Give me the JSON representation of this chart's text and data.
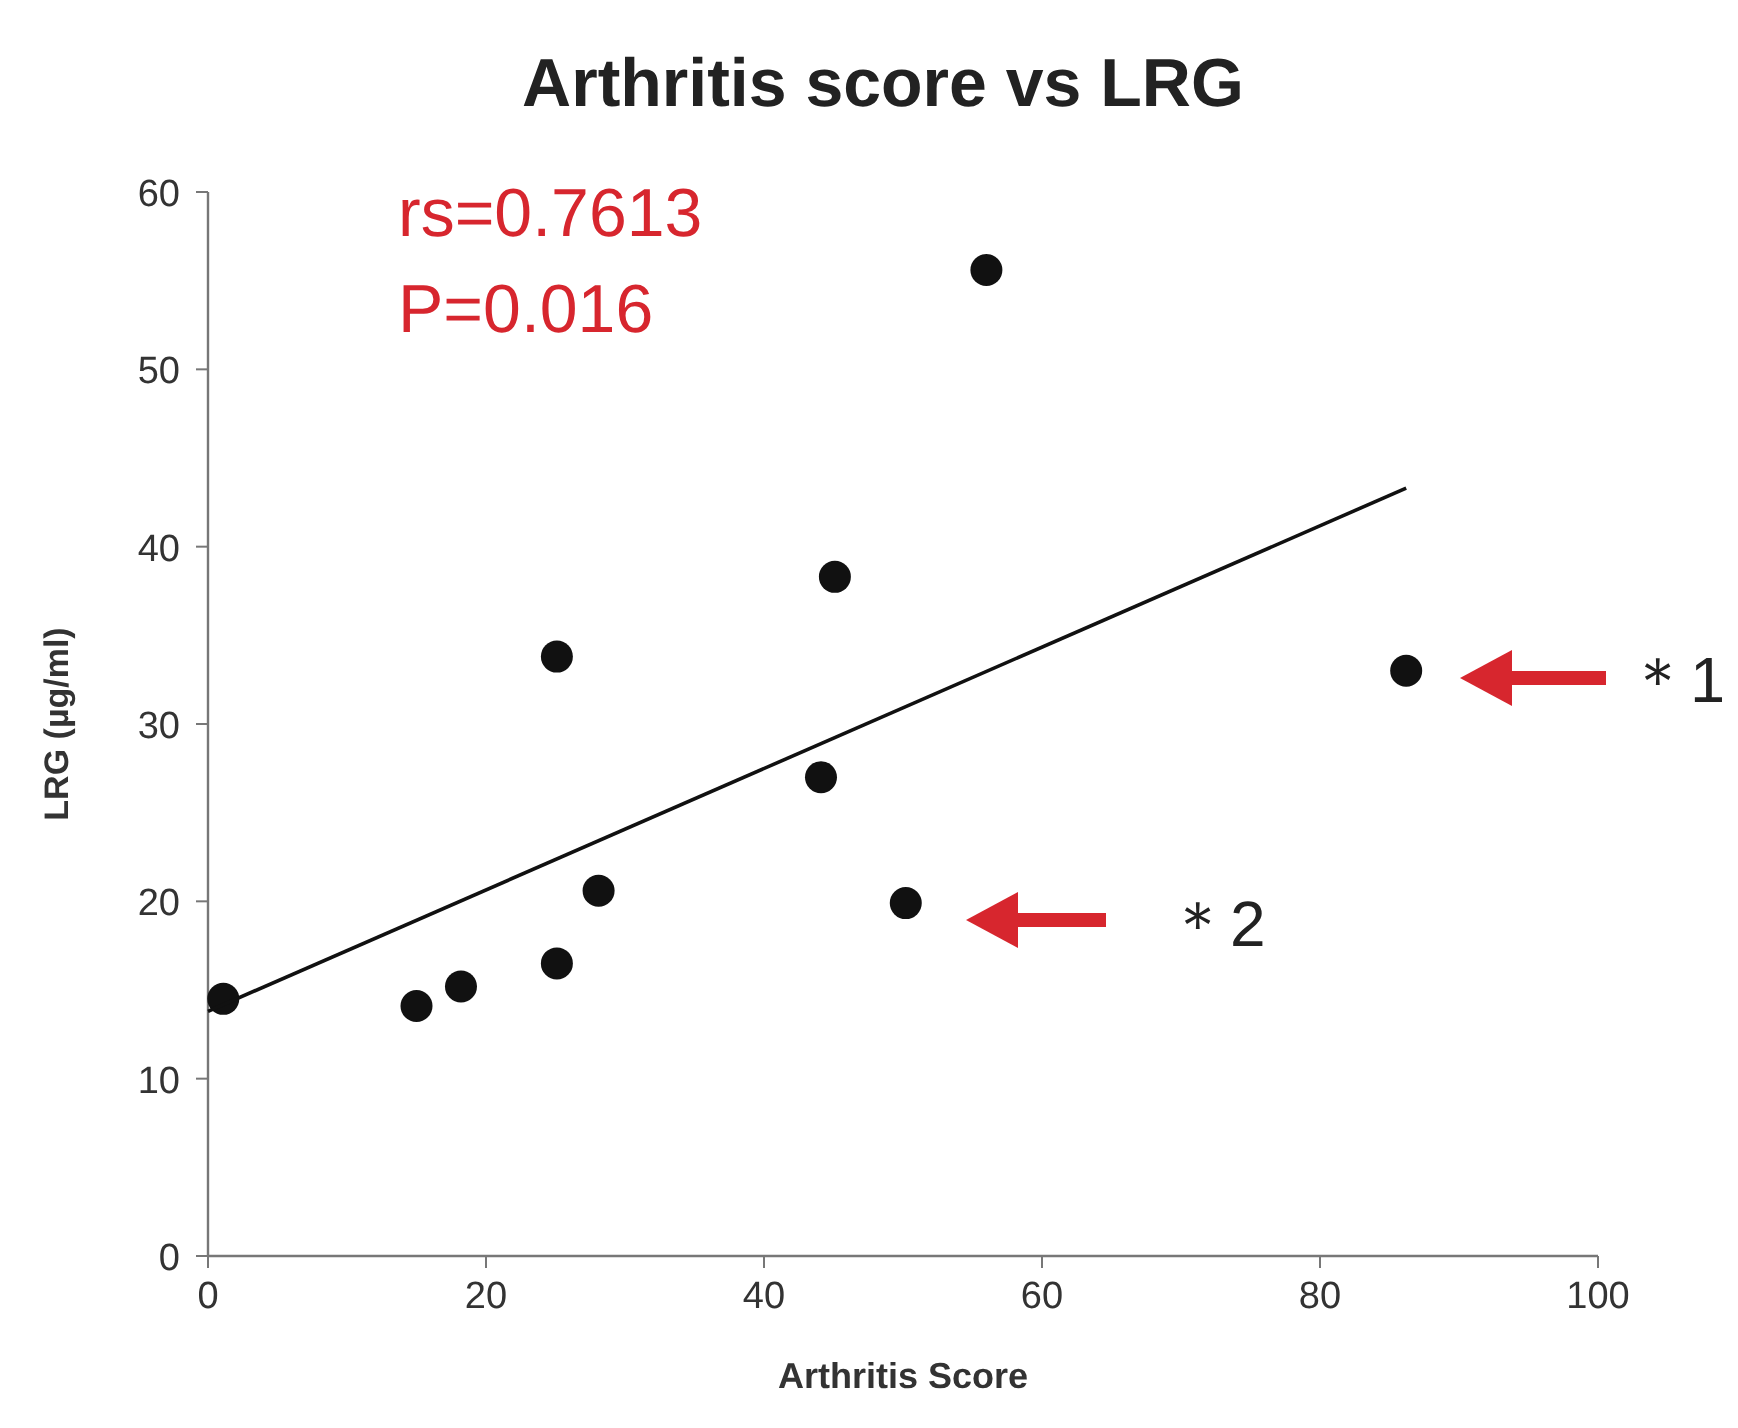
{
  "chart_data": {
    "type": "scatter",
    "title": "Arthritis score vs LRG",
    "xlabel": "Arthritis Score",
    "ylabel": "LRG (µg/ml)",
    "xlim": [
      0,
      100
    ],
    "xticks": [
      0,
      20,
      40,
      60,
      80,
      100
    ],
    "ylim": [
      0,
      60
    ],
    "yticks": [
      0,
      10,
      20,
      30,
      40,
      50,
      60
    ],
    "grid": false,
    "series": [
      {
        "color": "#111111",
        "marker": "circle",
        "x": [
          1.1,
          15,
          18.2,
          25.1,
          25.1,
          28.1,
          44.1,
          45.1,
          50.2,
          56,
          86.2
        ],
        "values": [
          14.5,
          14.1,
          15.2,
          33.8,
          16.5,
          20.6,
          27,
          38.3,
          19.9,
          55.6,
          33
        ]
      },
      {
        "type": "line",
        "color": "#111111",
        "marker": "none",
        "x": [
          0,
          86.2
        ],
        "values": [
          13.8,
          43.3
        ]
      }
    ],
    "annotations": [
      "rs=0.7613",
      "P=0.016",
      "＊1",
      "＊2"
    ]
  }
}
